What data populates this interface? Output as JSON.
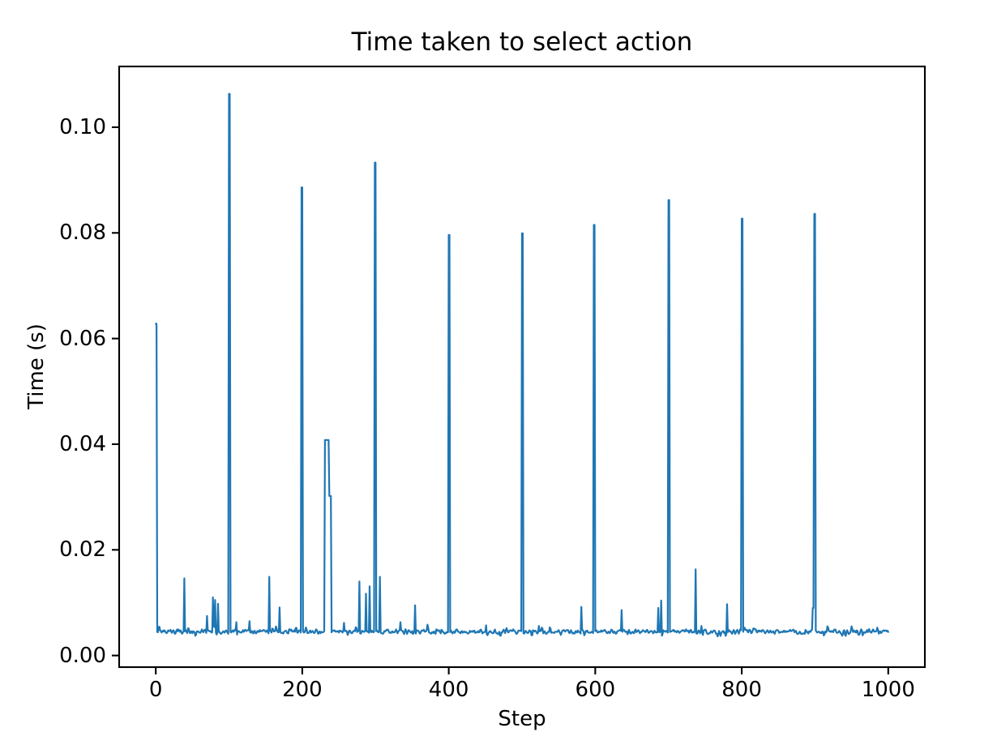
{
  "figure": {
    "background_color": "#ffffff",
    "text_color": "#000000"
  },
  "chart_data": {
    "type": "line",
    "title": "Time taken to select action",
    "xlabel": "Step",
    "ylabel": "Time (s)",
    "x_tick_labels": [
      "0",
      "200",
      "400",
      "600",
      "800",
      "1000"
    ],
    "x_tick_values": [
      0,
      200,
      400,
      600,
      800,
      1000
    ],
    "y_tick_labels": [
      "0.00",
      "0.02",
      "0.04",
      "0.06",
      "0.08",
      "0.10"
    ],
    "y_tick_values": [
      0,
      0.02,
      0.04,
      0.06,
      0.08,
      0.1
    ],
    "xlim": [
      -50,
      1050
    ],
    "ylim": [
      -0.0022,
      0.1115
    ],
    "grid": false,
    "legend": "none",
    "line_color": "#1f77b4",
    "num_steps": 1000,
    "baseline": 0.0045,
    "noise_amplitude": 0.0005,
    "spikes": [
      [
        0,
        1,
        0.0628
      ],
      [
        39,
        39,
        0.0146
      ],
      [
        70,
        70,
        0.0075
      ],
      [
        78,
        78,
        0.011
      ],
      [
        81,
        81,
        0.0105
      ],
      [
        85,
        85,
        0.0098
      ],
      [
        100,
        101,
        0.1063
      ],
      [
        110,
        110,
        0.0063
      ],
      [
        128,
        128,
        0.0065
      ],
      [
        155,
        155,
        0.0149
      ],
      [
        169,
        169,
        0.0091
      ],
      [
        199,
        200,
        0.0886
      ],
      [
        231,
        236,
        0.0408
      ],
      [
        237,
        239,
        0.0302
      ],
      [
        257,
        257,
        0.0062
      ],
      [
        278,
        278,
        0.014
      ],
      [
        287,
        287,
        0.0117
      ],
      [
        292,
        292,
        0.0131
      ],
      [
        299,
        300,
        0.0933
      ],
      [
        306,
        306,
        0.0149
      ],
      [
        334,
        334,
        0.0063
      ],
      [
        354,
        354,
        0.0095
      ],
      [
        400,
        401,
        0.0796
      ],
      [
        451,
        451,
        0.0057
      ],
      [
        500,
        501,
        0.0799
      ],
      [
        523,
        523,
        0.0056
      ],
      [
        581,
        581,
        0.0092
      ],
      [
        598,
        599,
        0.0815
      ],
      [
        636,
        636,
        0.0086
      ],
      [
        686,
        686,
        0.009
      ],
      [
        690,
        690,
        0.0104
      ],
      [
        700,
        701,
        0.0862
      ],
      [
        737,
        737,
        0.0163
      ],
      [
        780,
        780,
        0.0097
      ],
      [
        800,
        801,
        0.0827
      ],
      [
        897,
        898,
        0.009
      ],
      [
        899,
        900,
        0.0836
      ]
    ]
  }
}
